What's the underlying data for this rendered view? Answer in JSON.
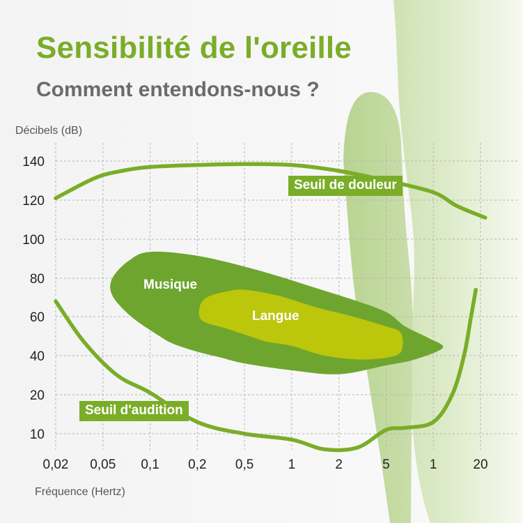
{
  "title": "Sensibilité de l'oreille",
  "subtitle": "Comment entendons-nous ?",
  "colors": {
    "accent": "#7aad28",
    "dark_green": "#6ea52f",
    "yellow_green": "#bcc60a",
    "grid": "#b5b5b5",
    "text_gray": "#6b6b6b"
  },
  "chart_data": {
    "type": "area",
    "ylabel": "Décibels (dB)",
    "xlabel": "Fréquence (Hertz)",
    "y_ticks": [
      140,
      120,
      100,
      80,
      60,
      40,
      20,
      10
    ],
    "x_ticks": [
      "0,02",
      "0,05",
      "0,1",
      "0,2",
      "0,5",
      "1",
      "2",
      "5",
      "1",
      "20"
    ],
    "series": [
      {
        "name": "Seuil de douleur",
        "kind": "curve",
        "points": [
          [
            0,
            121
          ],
          [
            0.8,
            131
          ],
          [
            1.3,
            134.5
          ],
          [
            2,
            137
          ],
          [
            3,
            138
          ],
          [
            4,
            138.5
          ],
          [
            5,
            138
          ],
          [
            6,
            135
          ],
          [
            7,
            130
          ],
          [
            8,
            124
          ],
          [
            8.5,
            117
          ],
          [
            9.1,
            111
          ]
        ]
      },
      {
        "name": "Seuil d'audition",
        "kind": "curve",
        "points": [
          [
            0,
            68
          ],
          [
            0.6,
            47
          ],
          [
            1.3,
            30
          ],
          [
            2,
            21
          ],
          [
            3,
            13
          ],
          [
            4,
            10
          ],
          [
            5,
            8.5
          ],
          [
            5.7,
            6
          ],
          [
            6.4,
            6.5
          ],
          [
            7,
            11
          ],
          [
            7.4,
            11.5
          ],
          [
            8,
            13
          ],
          [
            8.4,
            20
          ],
          [
            8.65,
            40
          ],
          [
            8.8,
            60
          ],
          [
            8.9,
            74
          ]
        ]
      },
      {
        "name": "Musique",
        "kind": "region",
        "points": [
          [
            1.2,
            71
          ],
          [
            1.2,
            80
          ],
          [
            1.55,
            89
          ],
          [
            2,
            93.5
          ],
          [
            3,
            91.5
          ],
          [
            4.3,
            84
          ],
          [
            5.5,
            75
          ],
          [
            6.9,
            63.5
          ],
          [
            7.4,
            55
          ],
          [
            7.9,
            49
          ],
          [
            8.2,
            44
          ],
          [
            7.6,
            38
          ],
          [
            7,
            35
          ],
          [
            6,
            30.5
          ],
          [
            5,
            32.5
          ],
          [
            4,
            36
          ],
          [
            3.5,
            39
          ],
          [
            3,
            42
          ],
          [
            2.5,
            46
          ],
          [
            2.2,
            50
          ],
          [
            1.6,
            60
          ]
        ]
      },
      {
        "name": "Langue",
        "kind": "region",
        "points": [
          [
            3.05,
            65
          ],
          [
            3.2,
            70
          ],
          [
            3.6,
            73
          ],
          [
            4,
            74
          ],
          [
            4.7,
            71
          ],
          [
            5.5,
            65
          ],
          [
            6.3,
            60
          ],
          [
            7,
            55
          ],
          [
            7.3,
            52
          ],
          [
            7.35,
            45
          ],
          [
            7.2,
            40
          ],
          [
            6.5,
            38
          ],
          [
            5.7,
            40
          ],
          [
            5,
            45
          ],
          [
            4.5,
            47
          ],
          [
            4.1,
            50
          ],
          [
            3.6,
            54
          ],
          [
            3.1,
            58
          ]
        ]
      }
    ],
    "labels": {
      "musique": "Musique",
      "langue": "Langue",
      "seuil_douleur": "Seuil de douleur",
      "seuil_audition": "Seuil d'audition"
    },
    "grid": true
  }
}
